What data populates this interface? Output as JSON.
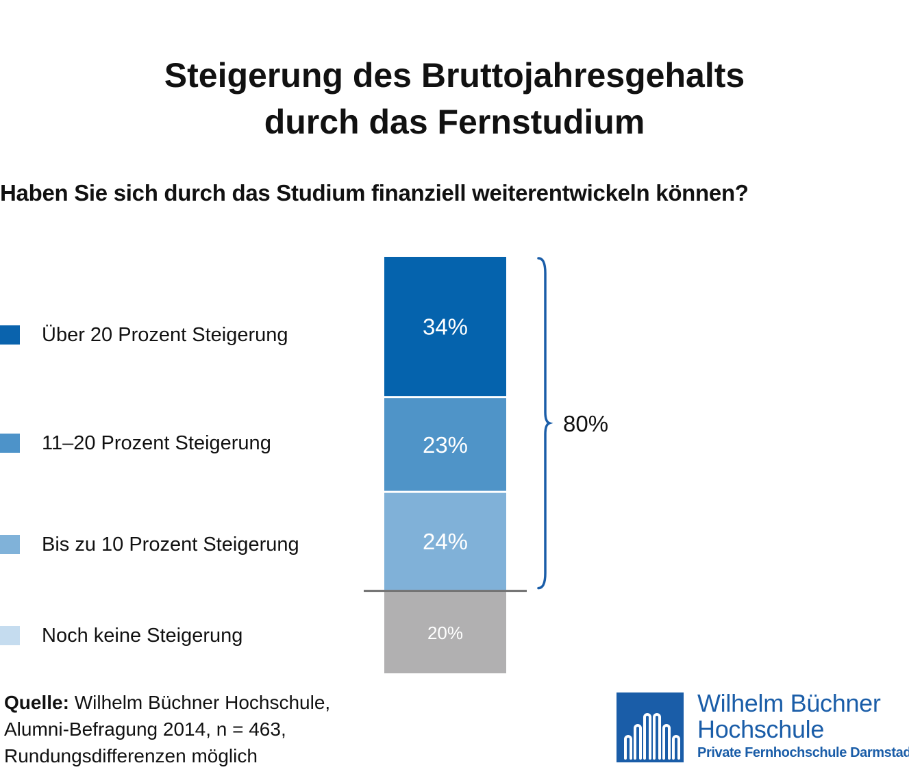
{
  "title": {
    "line1": "Steigerung des Bruttojahresgehalts",
    "line2": "durch das Fernstudium"
  },
  "subtitle": "Haben Sie sich durch das Studium finanziell weiterentwickeln können?",
  "legend": [
    {
      "label": "Über 20 Prozent Steigerung",
      "color": "#0a63ad"
    },
    {
      "label": "11–20 Prozent Steigerung",
      "color": "#4d93c9"
    },
    {
      "label": "Bis zu 10 Prozent Steigerung",
      "color": "#80b2d9"
    },
    {
      "label": "Noch keine Steigerung",
      "color": "#c5dcef"
    }
  ],
  "chart_data": {
    "type": "bar",
    "stacked": true,
    "categories": [
      "Haben Sie sich durch das Studium finanziell weiterentwickeln können?"
    ],
    "series": [
      {
        "name": "Über 20 Prozent Steigerung",
        "values": [
          34
        ],
        "label": "34%",
        "color": "#0563ad"
      },
      {
        "name": "11–20 Prozent Steigerung",
        "values": [
          23
        ],
        "label": "23%",
        "color": "#4f94c8"
      },
      {
        "name": "Bis zu 10 Prozent Steigerung",
        "values": [
          24
        ],
        "label": "24%",
        "color": "#80b1d8"
      },
      {
        "name": "Noch keine Steigerung",
        "values": [
          20
        ],
        "label": "20%",
        "color": "#b1b0b1"
      }
    ],
    "bracket": {
      "label": "80%",
      "covers": [
        "Über 20 Prozent Steigerung",
        "11–20 Prozent Steigerung",
        "Bis zu 10 Prozent Steigerung"
      ]
    },
    "unit": "%",
    "legend_position": "left",
    "grid": false
  },
  "source": {
    "label": "Quelle:",
    "line1": " Wilhelm Büchner Hochschule,",
    "line2": "Alumni-Befragung 2014, n = 463,",
    "line3": "Rundungsdifferenzen möglich"
  },
  "logo": {
    "name_line1": "Wilhelm Büchner",
    "name_line2": "Hochschule",
    "tagline": "Private Fernhochschule Darmstadt",
    "color": "#1a5da8"
  }
}
